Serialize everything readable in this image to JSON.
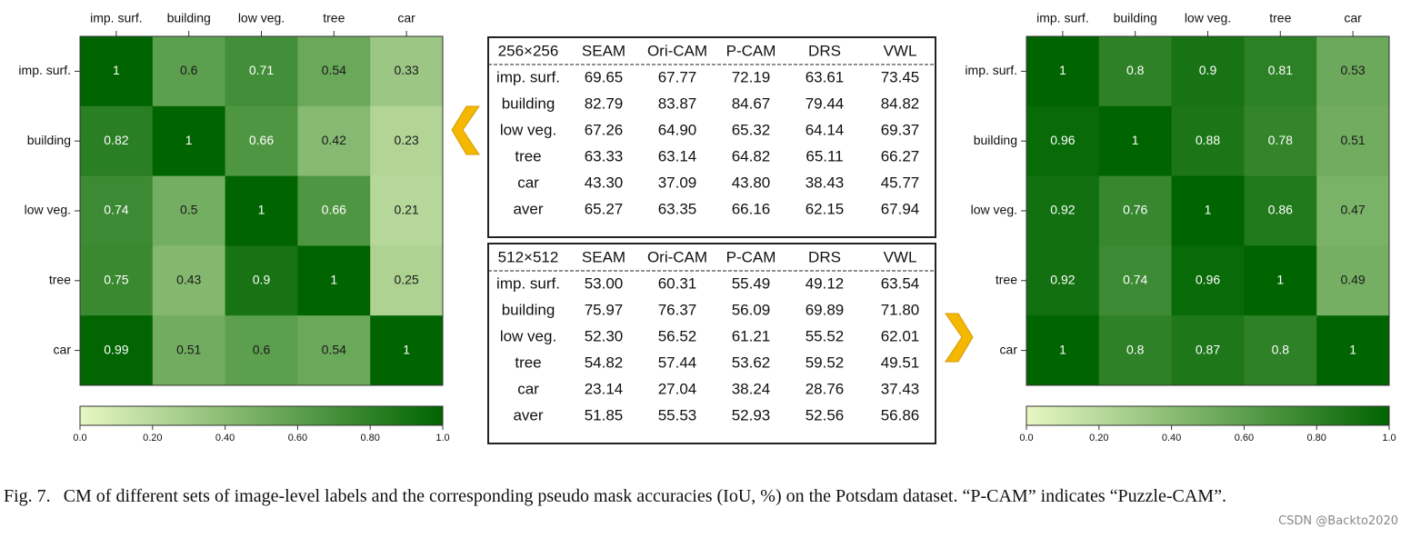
{
  "chart_data": [
    {
      "type": "heatmap",
      "x_categories": [
        "imp. surf.",
        "building",
        "low veg.",
        "tree",
        "car"
      ],
      "y_categories": [
        "imp. surf.",
        "building",
        "low veg.",
        "tree",
        "car"
      ],
      "values": [
        [
          1,
          0.6,
          0.71,
          0.54,
          0.33
        ],
        [
          0.82,
          1,
          0.66,
          0.42,
          0.23
        ],
        [
          0.74,
          0.5,
          1,
          0.66,
          0.21
        ],
        [
          0.75,
          0.43,
          0.9,
          1,
          0.25
        ],
        [
          0.99,
          0.51,
          0.6,
          0.54,
          1
        ]
      ],
      "colormap": [
        "#e7f7c3",
        "#006400"
      ],
      "zlim": [
        0,
        1
      ],
      "zticks": [
        {
          "value": 0,
          "label": "0.0"
        },
        {
          "value": 0.2,
          "label": "0.20"
        },
        {
          "value": 0.4,
          "label": "0.40"
        },
        {
          "value": 0.6,
          "label": "0.60"
        },
        {
          "value": 0.8,
          "label": "0.80"
        },
        {
          "value": 1,
          "label": "1.0"
        }
      ]
    },
    {
      "type": "heatmap",
      "x_categories": [
        "imp. surf.",
        "building",
        "low veg.",
        "tree",
        "car"
      ],
      "y_categories": [
        "imp. surf.",
        "building",
        "low veg.",
        "tree",
        "car"
      ],
      "values": [
        [
          1,
          0.8,
          0.9,
          0.81,
          0.53
        ],
        [
          0.96,
          1,
          0.88,
          0.78,
          0.51
        ],
        [
          0.92,
          0.76,
          1,
          0.86,
          0.47
        ],
        [
          0.92,
          0.74,
          0.96,
          1,
          0.49
        ],
        [
          1,
          0.8,
          0.87,
          0.8,
          1
        ]
      ],
      "colormap": [
        "#e7f7c3",
        "#006400"
      ],
      "zlim": [
        0,
        1
      ],
      "zticks": [
        {
          "value": 0,
          "label": "0.0"
        },
        {
          "value": 0.2,
          "label": "0.20"
        },
        {
          "value": 0.4,
          "label": "0.40"
        },
        {
          "value": 0.6,
          "label": "0.60"
        },
        {
          "value": 0.8,
          "label": "0.80"
        },
        {
          "value": 1,
          "label": "1.0"
        }
      ]
    }
  ],
  "tables": [
    {
      "header": [
        "256×256",
        "SEAM",
        "Ori-CAM",
        "P-CAM",
        "DRS",
        "VWL"
      ],
      "rows": [
        [
          "imp. surf.",
          "69.65",
          "67.77",
          "72.19",
          "63.61",
          "73.45"
        ],
        [
          "building",
          "82.79",
          "83.87",
          "84.67",
          "79.44",
          "84.82"
        ],
        [
          "low veg.",
          "67.26",
          "64.90",
          "65.32",
          "64.14",
          "69.37"
        ],
        [
          "tree",
          "63.33",
          "63.14",
          "64.82",
          "65.11",
          "66.27"
        ],
        [
          "car",
          "43.30",
          "37.09",
          "43.80",
          "38.43",
          "45.77"
        ],
        [
          "aver",
          "65.27",
          "63.35",
          "66.16",
          "62.15",
          "67.94"
        ]
      ]
    },
    {
      "header": [
        "512×512",
        "SEAM",
        "Ori-CAM",
        "P-CAM",
        "DRS",
        "VWL"
      ],
      "rows": [
        [
          "imp. surf.",
          "53.00",
          "60.31",
          "55.49",
          "49.12",
          "63.54"
        ],
        [
          "building",
          "75.97",
          "76.37",
          "56.09",
          "69.89",
          "71.80"
        ],
        [
          "low veg.",
          "52.30",
          "56.52",
          "61.21",
          "55.52",
          "62.01"
        ],
        [
          "tree",
          "54.82",
          "57.44",
          "53.62",
          "59.52",
          "49.51"
        ],
        [
          "car",
          "23.14",
          "27.04",
          "38.24",
          "28.76",
          "37.43"
        ],
        [
          "aver",
          "51.85",
          "55.53",
          "52.93",
          "52.56",
          "56.86"
        ]
      ]
    }
  ],
  "caption": {
    "label": "Fig. 7.",
    "text": "CM of different sets of image-level labels and the corresponding pseudo mask accuracies (IoU, %) on the Potsdam dataset. “P-CAM” indicates “Puzzle-CAM”."
  },
  "watermark": "CSDN @Backto2020"
}
